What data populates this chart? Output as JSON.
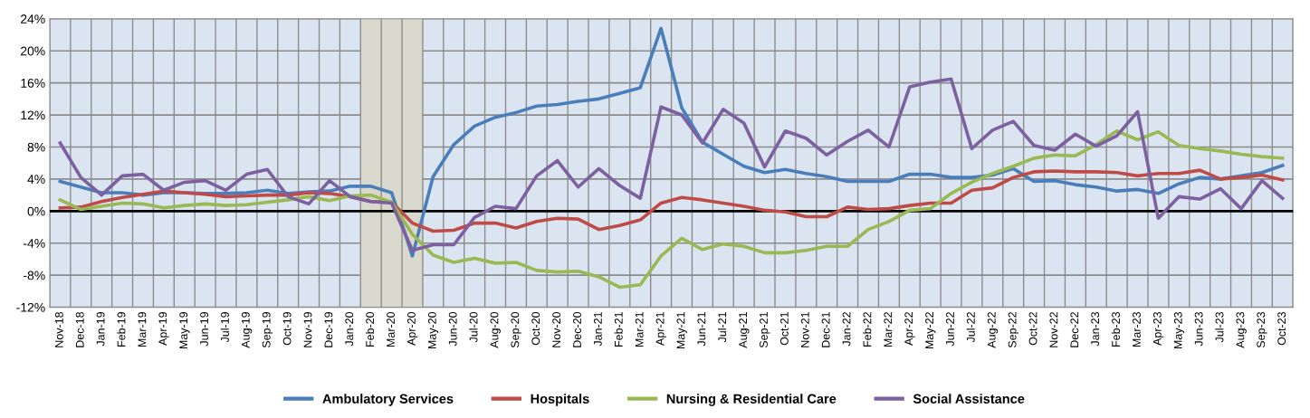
{
  "chart_data": {
    "type": "line",
    "categories": [
      "Nov-18",
      "Dec-18",
      "Jan-19",
      "Feb-19",
      "Mar-19",
      "Apr-19",
      "May-19",
      "Jun-19",
      "Jul-19",
      "Aug-19",
      "Sep-19",
      "Oct-19",
      "Nov-19",
      "Dec-19",
      "Jan-20",
      "Feb-20",
      "Mar-20",
      "Apr-20",
      "May-20",
      "Jun-20",
      "Jul-20",
      "Aug-20",
      "Sep-20",
      "Oct-20",
      "Nov-20",
      "Dec-20",
      "Jan-21",
      "Feb-21",
      "Mar-21",
      "Apr-21",
      "May-21",
      "Jun-21",
      "Jul-21",
      "Aug-21",
      "Sep-21",
      "Oct-21",
      "Nov-21",
      "Dec-21",
      "Jan-22",
      "Feb-22",
      "Mar-22",
      "Apr-22",
      "May-22",
      "Jun-22",
      "Jul-22",
      "Aug-22",
      "Sep-22",
      "Oct-22",
      "Nov-22",
      "Dec-22",
      "Jan-23",
      "Feb-23",
      "Mar-23",
      "Apr-23",
      "May-23",
      "Jun-23",
      "Jul-23",
      "Aug-23",
      "Sep-23",
      "Oct-23"
    ],
    "series": [
      {
        "name": "Ambulatory Services",
        "color": "#4a7ebb",
        "values": [
          3.7,
          3.0,
          2.3,
          2.3,
          2.0,
          2.3,
          2.3,
          2.2,
          2.2,
          2.3,
          2.6,
          2.2,
          2.4,
          2.5,
          3.1,
          3.1,
          2.3,
          -5.6,
          4.3,
          8.3,
          10.6,
          11.7,
          12.3,
          13.1,
          13.3,
          13.7,
          14.0,
          14.7,
          15.4,
          22.8,
          12.9,
          8.6,
          7.1,
          5.6,
          4.8,
          5.2,
          4.7,
          4.3,
          3.7,
          3.7,
          3.7,
          4.6,
          4.6,
          4.2,
          4.2,
          4.5,
          5.3,
          3.7,
          3.8,
          3.3,
          3.0,
          2.5,
          2.7,
          2.2,
          3.4,
          4.2,
          4.0,
          4.4,
          4.8,
          5.7
        ]
      },
      {
        "name": "Hospitals",
        "color": "#be4b48",
        "values": [
          0.4,
          0.5,
          1.2,
          1.7,
          2.1,
          2.5,
          2.3,
          2.1,
          1.8,
          1.9,
          2.0,
          2.0,
          2.3,
          2.2,
          1.8,
          1.2,
          1.1,
          -1.5,
          -2.5,
          -2.4,
          -1.5,
          -1.5,
          -2.1,
          -1.3,
          -0.9,
          -1.0,
          -2.3,
          -1.8,
          -1.1,
          1.0,
          1.7,
          1.4,
          1.0,
          0.6,
          0.1,
          -0.1,
          -0.7,
          -0.7,
          0.5,
          0.2,
          0.3,
          0.7,
          1.0,
          1.0,
          2.6,
          2.9,
          4.2,
          4.9,
          5.0,
          4.9,
          4.9,
          4.8,
          4.4,
          4.7,
          4.7,
          5.1,
          4.0,
          4.2,
          4.5,
          3.9
        ]
      },
      {
        "name": "Nursing & Residential Care",
        "color": "#98b954",
        "values": [
          1.4,
          0.2,
          0.6,
          1.0,
          0.9,
          0.4,
          0.7,
          0.9,
          0.7,
          0.8,
          1.1,
          1.4,
          1.8,
          1.3,
          1.9,
          2.0,
          1.1,
          -2.9,
          -5.5,
          -6.4,
          -5.9,
          -6.5,
          -6.4,
          -7.4,
          -7.6,
          -7.5,
          -8.2,
          -9.5,
          -9.2,
          -5.6,
          -3.4,
          -4.8,
          -4.1,
          -4.4,
          -5.2,
          -5.2,
          -4.9,
          -4.4,
          -4.4,
          -2.3,
          -1.3,
          0.1,
          0.3,
          2.2,
          3.6,
          4.7,
          5.6,
          6.6,
          7.0,
          6.9,
          8.3,
          10.0,
          8.9,
          9.9,
          8.2,
          7.8,
          7.5,
          7.1,
          6.8,
          6.6
        ]
      },
      {
        "name": "Social Assistance",
        "color": "#7d60a0",
        "values": [
          8.5,
          4.2,
          2.0,
          4.4,
          4.6,
          2.6,
          3.6,
          3.8,
          2.6,
          4.6,
          5.2,
          1.8,
          0.9,
          3.8,
          1.8,
          1.2,
          1.0,
          -4.9,
          -4.2,
          -4.2,
          -0.8,
          0.6,
          0.3,
          4.4,
          6.3,
          3.0,
          5.3,
          3.2,
          1.6,
          13.0,
          12.0,
          8.5,
          12.7,
          11.0,
          5.5,
          10.0,
          9.1,
          7.0,
          8.7,
          10.1,
          8.0,
          15.5,
          16.1,
          16.5,
          7.8,
          10.1,
          11.2,
          8.2,
          7.6,
          9.6,
          8.1,
          9.4,
          12.4,
          -0.9,
          1.8,
          1.5,
          2.8,
          0.3,
          3.8,
          1.6
        ]
      }
    ],
    "ylim": [
      -12,
      24
    ],
    "yticks": [
      {
        "value": -12,
        "label": "-12%"
      },
      {
        "value": -8,
        "label": "-8%"
      },
      {
        "value": -4,
        "label": "-4%"
      },
      {
        "value": 0,
        "label": "0%"
      },
      {
        "value": 4,
        "label": "4%"
      },
      {
        "value": 8,
        "label": "8%"
      },
      {
        "value": 12,
        "label": "12%"
      },
      {
        "value": 16,
        "label": "16%"
      },
      {
        "value": 20,
        "label": "20%"
      },
      {
        "value": 24,
        "label": "24%"
      }
    ],
    "ref_lines": [
      {
        "axis": "y",
        "value": 0,
        "color": "#000000"
      }
    ],
    "bands": [
      {
        "axis": "x",
        "from": "Feb-20",
        "to": "Apr-20",
        "color": "#d8d9cc"
      }
    ],
    "grid": true,
    "legend": "bottom",
    "marker": "none",
    "line_style": "solid"
  }
}
